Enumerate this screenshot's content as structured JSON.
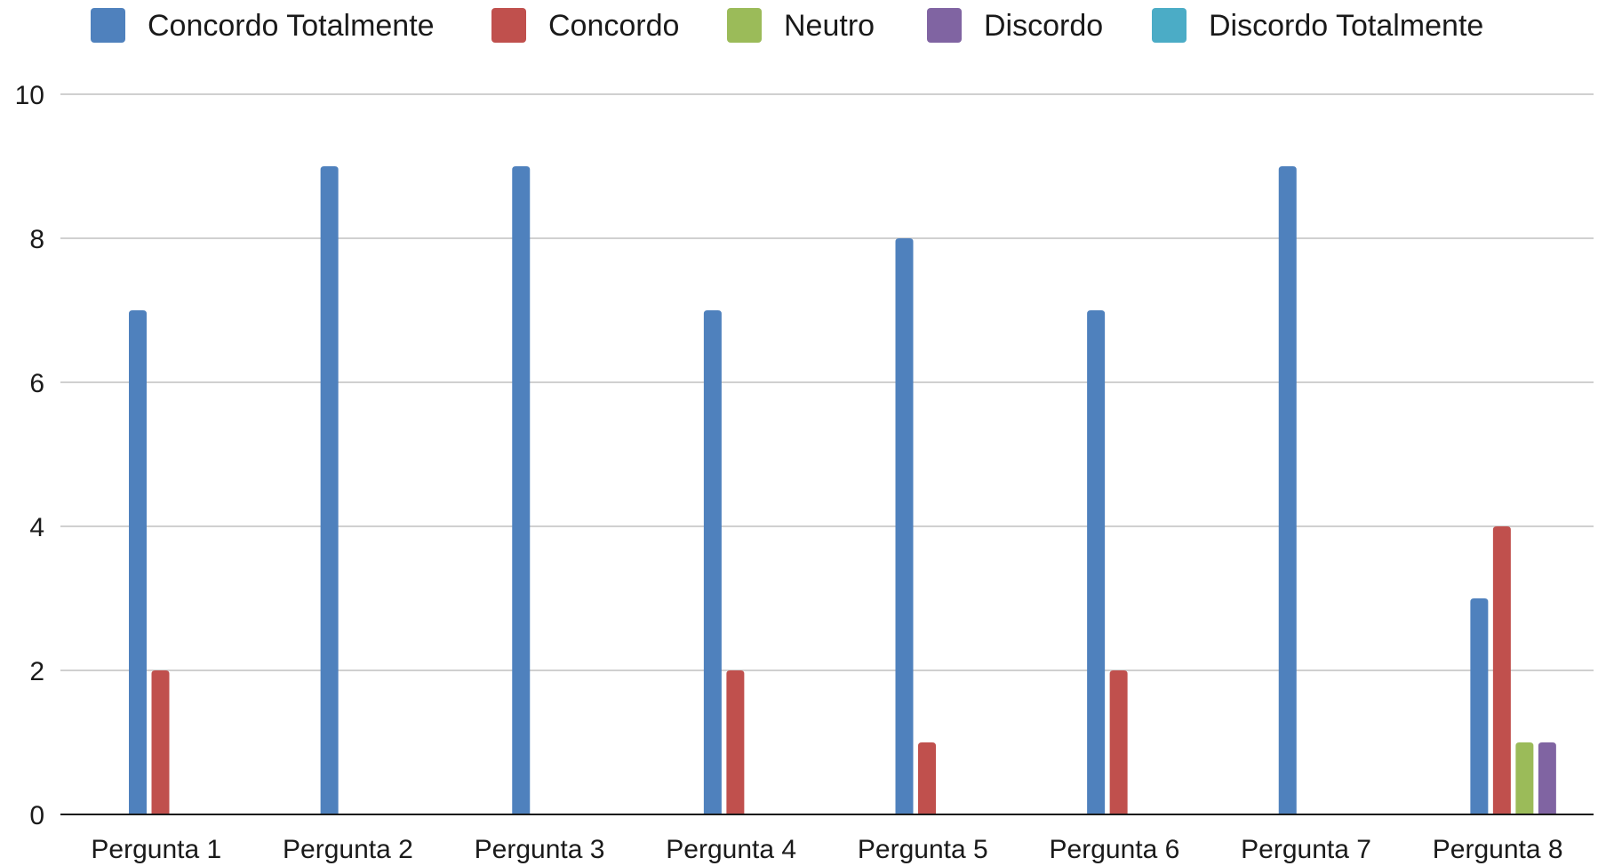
{
  "chart_data": {
    "type": "bar",
    "title": "",
    "xlabel": "",
    "ylabel": "",
    "categories": [
      "Pergunta 1",
      "Pergunta 2",
      "Pergunta 3",
      "Pergunta 4",
      "Pergunta 5",
      "Pergunta 6",
      "Pergunta 7",
      "Pergunta 8"
    ],
    "series": [
      {
        "name": "Concordo Totalmente",
        "color": "#4F81BD",
        "values": [
          7,
          9,
          9,
          7,
          8,
          7,
          9,
          3
        ]
      },
      {
        "name": "Concordo",
        "color": "#C0504D",
        "values": [
          2,
          0,
          0,
          2,
          1,
          2,
          0,
          4
        ]
      },
      {
        "name": "Neutro",
        "color": "#9BBB59",
        "values": [
          0,
          0,
          0,
          0,
          0,
          0,
          0,
          1
        ]
      },
      {
        "name": "Discordo",
        "color": "#8064A2",
        "values": [
          0,
          0,
          0,
          0,
          0,
          0,
          0,
          1
        ]
      },
      {
        "name": "Discordo Totalmente",
        "color": "#4BACC6",
        "values": [
          0,
          0,
          0,
          0,
          0,
          0,
          0,
          0
        ]
      }
    ],
    "ylim": [
      0,
      10
    ],
    "yticks": [
      "0",
      "2",
      "4",
      "6",
      "8",
      "10"
    ],
    "grid": true,
    "legend_position": "top"
  }
}
